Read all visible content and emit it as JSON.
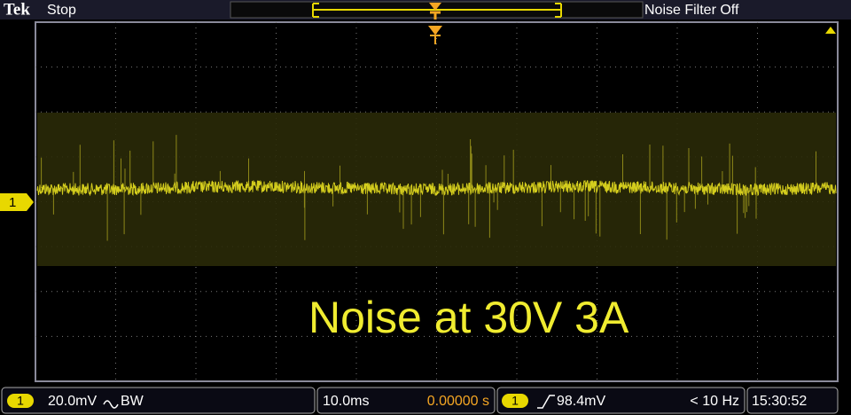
{
  "header": {
    "brand": "Tek",
    "status": "Stop",
    "noise_filter": "Noise Filter Off"
  },
  "display": {
    "channel_marker": "1",
    "annotation": "Noise at 30V 3A"
  },
  "footer": {
    "channel": {
      "label": "1",
      "scale": "20.0mV",
      "bandwidth": "BW"
    },
    "timebase": {
      "scale": "10.0ms",
      "position": "0.00000 s"
    },
    "trigger": {
      "source": "1",
      "level": "98.4mV",
      "frequency": "< 10 Hz"
    },
    "clock": "15:30:52"
  }
}
